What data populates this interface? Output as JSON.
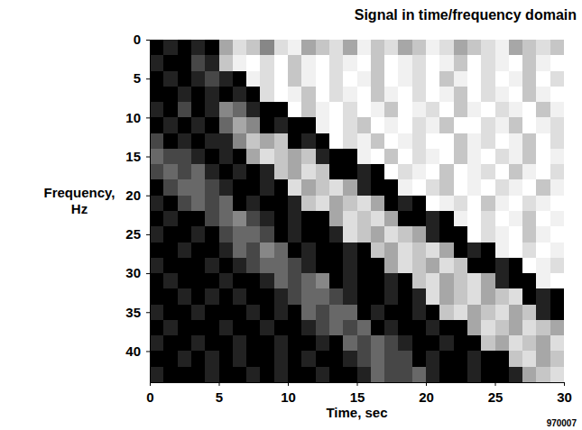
{
  "chart_data": {
    "type": "heatmap",
    "title": "Signal in time/frequency domain",
    "x_label": "Time, sec",
    "y_label": "Frequency, Hz",
    "annotation": "970007",
    "xlim": [
      0,
      30
    ],
    "ylim": [
      0,
      44
    ],
    "xticks": [
      0,
      5,
      10,
      15,
      20,
      25,
      30
    ],
    "yticks": [
      0,
      5,
      10,
      15,
      20,
      25,
      30,
      35,
      40
    ],
    "x_edges": [
      0,
      1,
      2,
      3,
      4,
      5,
      6,
      7,
      8,
      9,
      10,
      11,
      12,
      13,
      14,
      15,
      16,
      17,
      18,
      19,
      20,
      21,
      22,
      23,
      24,
      25,
      26,
      27,
      28,
      29,
      30
    ],
    "y_edges": [
      0,
      2,
      4,
      6,
      8,
      10,
      12,
      14,
      16,
      18,
      20,
      22,
      24,
      26,
      28,
      30,
      32,
      34,
      36,
      38,
      40,
      42,
      44
    ],
    "color_range": [
      0,
      9
    ],
    "cells": [
      [
        0,
        1,
        0,
        1,
        0,
        5,
        7,
        6,
        4,
        7,
        8,
        5,
        6,
        7,
        5,
        8,
        6,
        7,
        5,
        6,
        8,
        7,
        5,
        6,
        7,
        8,
        5,
        6,
        7,
        6
      ],
      [
        1,
        0,
        0,
        2,
        1,
        6,
        8,
        9,
        7,
        9,
        6,
        8,
        9,
        7,
        8,
        9,
        6,
        9,
        8,
        7,
        9,
        8,
        6,
        9,
        7,
        8,
        9,
        6,
        8,
        9
      ],
      [
        0,
        1,
        0,
        1,
        2,
        1,
        0,
        8,
        7,
        9,
        6,
        8,
        9,
        7,
        9,
        8,
        6,
        9,
        8,
        7,
        9,
        6,
        8,
        9,
        7,
        9,
        8,
        6,
        9,
        7
      ],
      [
        0,
        0,
        1,
        0,
        1,
        0,
        1,
        0,
        7,
        9,
        8,
        6,
        9,
        7,
        8,
        9,
        6,
        8,
        9,
        7,
        9,
        8,
        6,
        9,
        7,
        8,
        9,
        6,
        8,
        9
      ],
      [
        1,
        0,
        2,
        0,
        1,
        4,
        3,
        1,
        0,
        0,
        9,
        6,
        8,
        9,
        7,
        9,
        8,
        6,
        9,
        8,
        7,
        9,
        6,
        8,
        9,
        7,
        8,
        9,
        6,
        8
      ],
      [
        0,
        1,
        0,
        1,
        0,
        3,
        5,
        4,
        0,
        1,
        0,
        0,
        8,
        9,
        7,
        6,
        9,
        8,
        9,
        7,
        8,
        6,
        9,
        9,
        7,
        8,
        6,
        9,
        8,
        7
      ],
      [
        2,
        0,
        1,
        0,
        1,
        1,
        4,
        6,
        5,
        6,
        0,
        1,
        0,
        9,
        7,
        8,
        6,
        9,
        8,
        7,
        9,
        9,
        6,
        8,
        7,
        9,
        8,
        6,
        9,
        7
      ],
      [
        3,
        2,
        2,
        1,
        0,
        1,
        0,
        5,
        7,
        6,
        5,
        6,
        1,
        0,
        0,
        8,
        9,
        6,
        9,
        7,
        8,
        9,
        6,
        8,
        9,
        7,
        8,
        6,
        9,
        8
      ],
      [
        2,
        3,
        2,
        3,
        1,
        0,
        1,
        0,
        1,
        6,
        5,
        7,
        6,
        0,
        0,
        1,
        0,
        9,
        7,
        8,
        9,
        6,
        9,
        8,
        7,
        9,
        6,
        8,
        9,
        7
      ],
      [
        0,
        2,
        3,
        3,
        2,
        1,
        0,
        0,
        1,
        0,
        7,
        5,
        6,
        7,
        5,
        1,
        0,
        0,
        8,
        9,
        7,
        6,
        9,
        8,
        9,
        7,
        8,
        9,
        6,
        8
      ],
      [
        1,
        0,
        2,
        3,
        2,
        3,
        0,
        1,
        0,
        0,
        1,
        6,
        7,
        5,
        6,
        7,
        5,
        0,
        1,
        0,
        9,
        8,
        7,
        9,
        6,
        8,
        9,
        7,
        8,
        9
      ],
      [
        0,
        1,
        0,
        0,
        2,
        3,
        4,
        2,
        1,
        0,
        1,
        0,
        0,
        5,
        7,
        6,
        7,
        5,
        0,
        0,
        1,
        0,
        8,
        9,
        7,
        9,
        8,
        6,
        9,
        8
      ],
      [
        1,
        0,
        0,
        1,
        0,
        2,
        3,
        3,
        2,
        0,
        1,
        0,
        0,
        1,
        7,
        6,
        5,
        7,
        6,
        5,
        1,
        0,
        0,
        9,
        7,
        8,
        9,
        6,
        8,
        9
      ],
      [
        0,
        0,
        1,
        0,
        0,
        1,
        3,
        2,
        4,
        3,
        0,
        1,
        0,
        0,
        1,
        0,
        6,
        5,
        7,
        6,
        7,
        5,
        0,
        1,
        0,
        8,
        9,
        7,
        9,
        8
      ],
      [
        1,
        0,
        0,
        0,
        1,
        0,
        1,
        2,
        3,
        3,
        2,
        1,
        0,
        0,
        1,
        0,
        0,
        5,
        7,
        6,
        5,
        7,
        6,
        0,
        0,
        1,
        0,
        9,
        8,
        7
      ],
      [
        0,
        1,
        0,
        0,
        0,
        1,
        0,
        0,
        1,
        3,
        2,
        3,
        4,
        0,
        1,
        0,
        0,
        1,
        0,
        6,
        7,
        5,
        6,
        7,
        5,
        1,
        0,
        0,
        8,
        9
      ],
      [
        0,
        0,
        1,
        0,
        1,
        0,
        1,
        0,
        0,
        1,
        2,
        3,
        3,
        2,
        1,
        0,
        0,
        1,
        0,
        1,
        7,
        5,
        6,
        7,
        5,
        6,
        7,
        0,
        1,
        0
      ],
      [
        1,
        0,
        0,
        1,
        0,
        0,
        0,
        1,
        0,
        1,
        0,
        3,
        2,
        3,
        3,
        0,
        1,
        0,
        0,
        1,
        0,
        6,
        7,
        5,
        6,
        7,
        5,
        6,
        1,
        0
      ],
      [
        0,
        1,
        0,
        0,
        0,
        1,
        0,
        0,
        1,
        0,
        0,
        1,
        2,
        3,
        2,
        3,
        0,
        1,
        0,
        0,
        1,
        0,
        0,
        5,
        7,
        6,
        5,
        7,
        6,
        5
      ],
      [
        1,
        0,
        0,
        1,
        0,
        0,
        1,
        0,
        0,
        1,
        0,
        0,
        1,
        0,
        3,
        2,
        3,
        2,
        1,
        0,
        0,
        1,
        0,
        0,
        6,
        5,
        7,
        6,
        5,
        7
      ],
      [
        0,
        0,
        1,
        0,
        1,
        0,
        1,
        0,
        0,
        1,
        0,
        1,
        0,
        0,
        1,
        2,
        3,
        2,
        2,
        0,
        1,
        0,
        0,
        1,
        0,
        0,
        6,
        7,
        5,
        6
      ],
      [
        1,
        0,
        0,
        0,
        1,
        0,
        0,
        1,
        0,
        1,
        0,
        0,
        1,
        0,
        0,
        1,
        3,
        2,
        2,
        3,
        1,
        0,
        0,
        1,
        0,
        0,
        1,
        5,
        6,
        7
      ]
    ]
  }
}
